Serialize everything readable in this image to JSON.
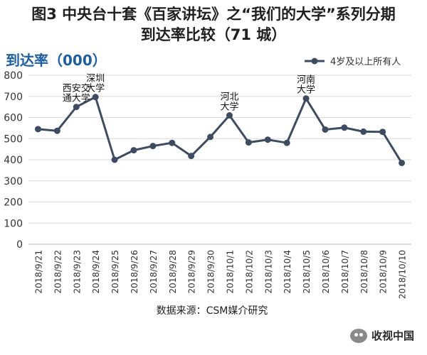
{
  "title": {
    "line1": "图3 中央台十套《百家讲坛》之“我们的大学”系列分期",
    "line2": "到达率比较（71 城）"
  },
  "watermark": {
    "icon": "wechat-icon",
    "text": "收视中国"
  },
  "colors": {
    "series": "#3d4c60",
    "ytitle": "#1f5fa0",
    "grid": "#d9d9d9"
  },
  "chart_data": {
    "type": "line",
    "ylabel": "到达率（000）",
    "source": "数据来源：CSM媒介研究",
    "ylim": [
      0,
      800
    ],
    "yticks": [
      0,
      100,
      200,
      300,
      400,
      500,
      600,
      700,
      800
    ],
    "grid": true,
    "legend_position": "top-right",
    "categories": [
      "2018/9/21",
      "2018/9/22",
      "2018/9/23",
      "2018/9/24",
      "2018/9/25",
      "2018/9/26",
      "2018/9/27",
      "2018/9/28",
      "2018/9/29",
      "2018/9/30",
      "2018/10/1",
      "2018/10/2",
      "2018/10/3",
      "2018/10/4",
      "2018/10/5",
      "2018/10/6",
      "2018/10/7",
      "2018/10/8",
      "2018/10/9",
      "2018/10/10"
    ],
    "series": [
      {
        "name": "4岁及以上所有人",
        "values": [
          545,
          537,
          650,
          697,
          400,
          445,
          465,
          480,
          418,
          508,
          610,
          482,
          495,
          480,
          690,
          543,
          552,
          533,
          532,
          385
        ]
      }
    ],
    "annotations": [
      {
        "index": 2,
        "lines": [
          "西安交",
          "通大学"
        ]
      },
      {
        "index": 3,
        "lines": [
          "深圳",
          "大学"
        ]
      },
      {
        "index": 10,
        "lines": [
          "河北",
          "大学"
        ]
      },
      {
        "index": 14,
        "lines": [
          "河南",
          "大学"
        ]
      }
    ]
  }
}
